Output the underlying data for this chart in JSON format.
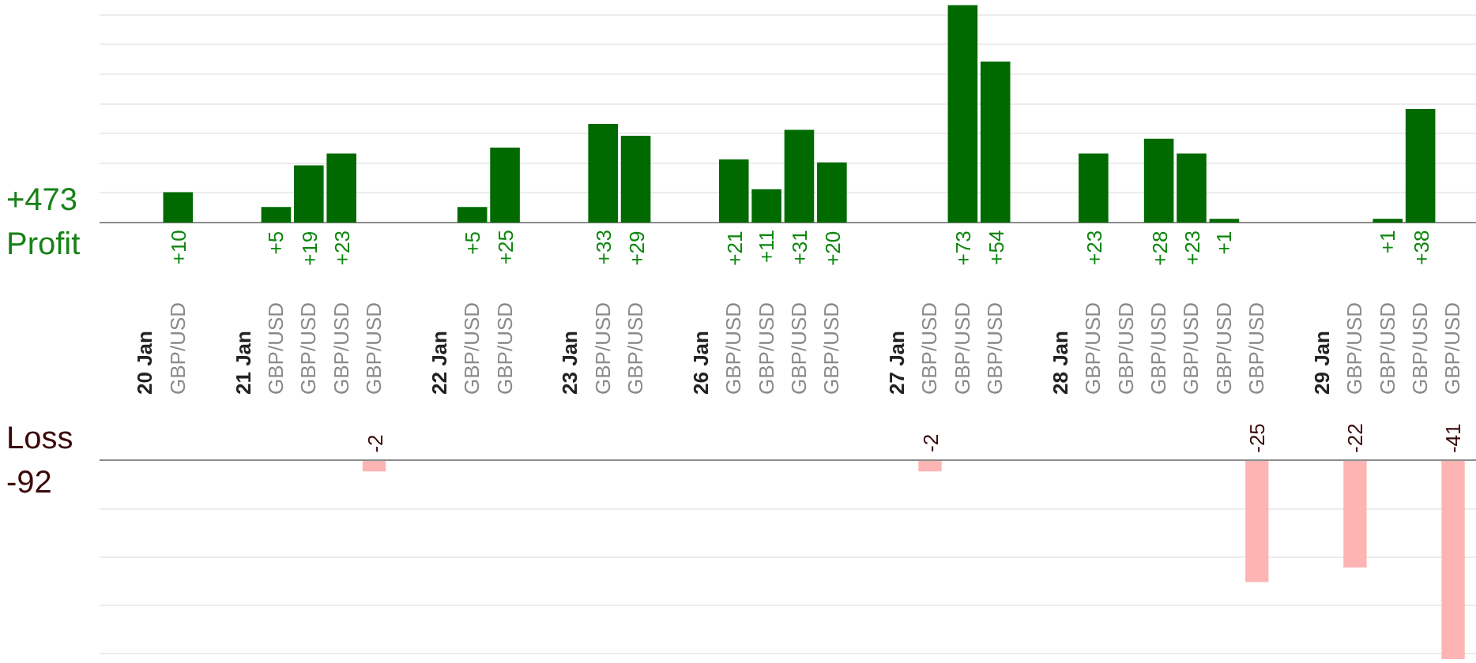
{
  "chart_data": [
    {
      "type": "bar",
      "ylabel": "Profit",
      "annotations": [
        "+473"
      ],
      "categories": [
        "20 Jan",
        "GBP/USD",
        null,
        "21 Jan",
        "GBP/USD",
        "GBP/USD",
        "GBP/USD",
        "GBP/USD",
        null,
        "22 Jan",
        "GBP/USD",
        "GBP/USD",
        null,
        "23 Jan",
        "GBP/USD",
        "GBP/USD",
        null,
        "26 Jan",
        "GBP/USD",
        "GBP/USD",
        "GBP/USD",
        "GBP/USD",
        null,
        "27 Jan",
        "GBP/USD",
        "GBP/USD",
        "GBP/USD",
        null,
        "28 Jan",
        "GBP/USD",
        "GBP/USD",
        "GBP/USD",
        "GBP/USD",
        "GBP/USD",
        "GBP/USD",
        null,
        "29 Jan",
        "GBP/USD",
        "GBP/USD",
        "GBP/USD",
        "GBP/USD"
      ],
      "series": [
        {
          "color": "#006a00",
          "values": [
            null,
            10,
            null,
            null,
            5,
            19,
            23,
            null,
            null,
            null,
            5,
            25,
            null,
            null,
            33,
            29,
            null,
            null,
            21,
            11,
            31,
            20,
            null,
            null,
            null,
            73,
            54,
            null,
            null,
            23,
            null,
            28,
            23,
            1,
            null,
            null,
            null,
            null,
            1,
            38,
            null
          ],
          "value_labels": [
            null,
            "+10",
            null,
            null,
            "+5",
            "+19",
            "+23",
            null,
            null,
            null,
            "+5",
            "+25",
            null,
            null,
            "+33",
            "+29",
            null,
            null,
            "+21",
            "+11",
            "+31",
            "+20",
            null,
            null,
            null,
            "+73",
            "+54",
            null,
            null,
            "+23",
            null,
            "+28",
            "+23",
            "+1",
            null,
            null,
            null,
            null,
            "+1",
            "+38",
            null
          ]
        }
      ],
      "ylim": [
        0,
        75
      ],
      "yticks": [
        {
          "value": 10,
          "label": null
        },
        {
          "value": 20,
          "label": null
        },
        {
          "value": 30,
          "label": null
        },
        {
          "value": 40,
          "label": null
        },
        {
          "value": 50,
          "label": null
        },
        {
          "value": 60,
          "label": null
        },
        {
          "value": 70,
          "label": null
        }
      ],
      "grid": "y",
      "tick_labels": "x"
    },
    {
      "type": "bar",
      "ylabel": "Loss",
      "annotations": [
        "-92"
      ],
      "categories": [
        "20 Jan",
        "GBP/USD",
        null,
        "21 Jan",
        "GBP/USD",
        "GBP/USD",
        "GBP/USD",
        "GBP/USD",
        null,
        "22 Jan",
        "GBP/USD",
        "GBP/USD",
        null,
        "23 Jan",
        "GBP/USD",
        "GBP/USD",
        null,
        "26 Jan",
        "GBP/USD",
        "GBP/USD",
        "GBP/USD",
        "GBP/USD",
        null,
        "27 Jan",
        "GBP/USD",
        "GBP/USD",
        "GBP/USD",
        null,
        "28 Jan",
        "GBP/USD",
        "GBP/USD",
        "GBP/USD",
        "GBP/USD",
        "GBP/USD",
        "GBP/USD",
        null,
        "29 Jan",
        "GBP/USD",
        "GBP/USD",
        "GBP/USD",
        "GBP/USD"
      ],
      "series": [
        {
          "color": "#ffb4b4",
          "values": [
            null,
            null,
            null,
            null,
            null,
            null,
            null,
            -2,
            null,
            null,
            null,
            null,
            null,
            null,
            null,
            null,
            null,
            null,
            null,
            null,
            null,
            null,
            null,
            null,
            -2,
            null,
            null,
            null,
            null,
            null,
            null,
            null,
            null,
            null,
            -25,
            null,
            null,
            -22,
            null,
            null,
            -41
          ]
        }
      ],
      "data_labels": true,
      "ylim": [
        -42,
        0
      ],
      "yticks": [
        {
          "value": -10,
          "label": null
        },
        {
          "value": -20,
          "label": null
        },
        {
          "value": -30,
          "label": null
        },
        {
          "value": -40,
          "label": null
        }
      ],
      "grid": "y",
      "tick_labels": false
    }
  ]
}
